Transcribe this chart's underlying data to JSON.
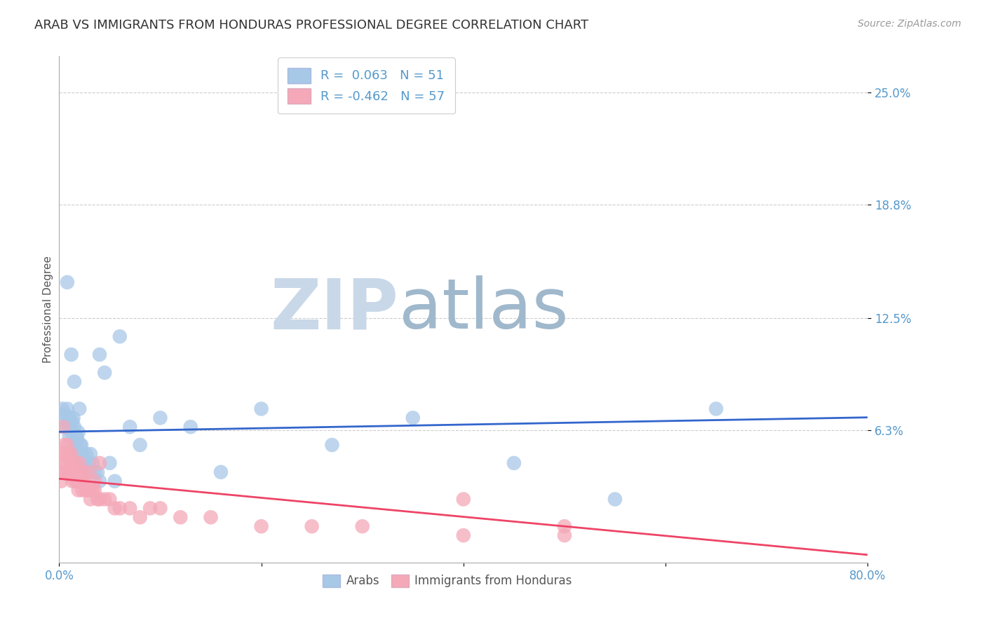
{
  "title": "ARAB VS IMMIGRANTS FROM HONDURAS PROFESSIONAL DEGREE CORRELATION CHART",
  "source": "Source: ZipAtlas.com",
  "ylabel": "Professional Degree",
  "ytick_labels_right": [
    "6.3%",
    "12.5%",
    "18.8%",
    "25.0%"
  ],
  "ytick_values": [
    6.3,
    12.5,
    18.8,
    25.0
  ],
  "xlim": [
    0.0,
    80.0
  ],
  "ylim": [
    -1.0,
    27.0
  ],
  "legend_r_arab": " 0.063",
  "legend_n_arab": "51",
  "legend_r_hond": "-0.462",
  "legend_n_hond": "57",
  "arab_color": "#a8c8e8",
  "hond_color": "#f4a8b8",
  "arab_line_color": "#3366cc",
  "hond_line_color": "#ee4466",
  "background_color": "#ffffff",
  "watermark_zip_color": "#c8d8e8",
  "watermark_atlas_color": "#a0b8cc",
  "title_fontsize": 13,
  "axis_tick_color": "#5599cc",
  "legend_text_color": "#5599cc",
  "ylabel_color": "#555555",
  "arab_x": [
    0.3,
    0.5,
    0.6,
    0.7,
    0.8,
    0.9,
    1.0,
    1.0,
    1.1,
    1.2,
    1.3,
    1.4,
    1.5,
    1.6,
    1.7,
    1.8,
    1.9,
    2.0,
    2.1,
    2.2,
    2.3,
    2.5,
    2.7,
    2.9,
    3.1,
    3.3,
    3.5,
    3.8,
    4.0,
    4.5,
    5.0,
    5.5,
    6.0,
    7.0,
    8.0,
    10.0,
    13.0,
    16.0,
    20.0,
    27.0,
    35.0,
    45.0,
    55.0,
    65.0,
    0.8,
    1.2,
    1.5,
    2.0,
    2.5,
    3.0,
    4.0
  ],
  "arab_y": [
    7.5,
    7.0,
    7.2,
    6.5,
    7.5,
    6.8,
    6.0,
    7.0,
    6.5,
    6.2,
    6.8,
    7.0,
    6.5,
    5.5,
    6.0,
    5.8,
    6.2,
    5.0,
    5.5,
    5.5,
    5.0,
    4.5,
    5.0,
    4.5,
    5.0,
    4.5,
    4.0,
    4.0,
    10.5,
    9.5,
    4.5,
    3.5,
    11.5,
    6.5,
    5.5,
    7.0,
    6.5,
    4.0,
    7.5,
    5.5,
    7.0,
    4.5,
    2.5,
    7.5,
    14.5,
    10.5,
    9.0,
    7.5,
    4.5,
    4.0,
    3.5
  ],
  "hond_x": [
    0.1,
    0.2,
    0.3,
    0.4,
    0.5,
    0.6,
    0.7,
    0.8,
    0.9,
    1.0,
    1.1,
    1.2,
    1.3,
    1.4,
    1.5,
    1.6,
    1.7,
    1.8,
    1.9,
    2.0,
    2.1,
    2.2,
    2.3,
    2.5,
    2.7,
    2.9,
    3.1,
    3.3,
    3.5,
    3.8,
    4.0,
    4.5,
    5.0,
    5.5,
    6.0,
    7.0,
    8.0,
    9.0,
    10.0,
    12.0,
    15.0,
    20.0,
    25.0,
    30.0,
    40.0,
    50.0,
    0.4,
    0.8,
    1.2,
    1.6,
    2.0,
    2.5,
    3.0,
    3.5,
    4.0,
    40.0,
    50.0
  ],
  "hond_y": [
    4.0,
    3.5,
    5.0,
    4.5,
    5.5,
    4.0,
    5.0,
    4.5,
    4.0,
    5.0,
    4.0,
    4.5,
    3.5,
    4.0,
    4.5,
    3.5,
    4.0,
    3.5,
    3.0,
    4.0,
    3.5,
    3.5,
    3.0,
    3.5,
    3.0,
    3.0,
    2.5,
    3.0,
    3.0,
    2.5,
    2.5,
    2.5,
    2.5,
    2.0,
    2.0,
    2.0,
    1.5,
    2.0,
    2.0,
    1.5,
    1.5,
    1.0,
    1.0,
    1.0,
    0.5,
    0.5,
    6.5,
    5.5,
    5.0,
    4.5,
    4.5,
    4.0,
    4.0,
    3.5,
    4.5,
    2.5,
    1.0
  ],
  "xtick_positions": [
    0,
    20,
    40,
    60,
    80
  ],
  "xtick_labels_show": [
    "0.0%",
    "",
    "",
    "",
    "80.0%"
  ]
}
